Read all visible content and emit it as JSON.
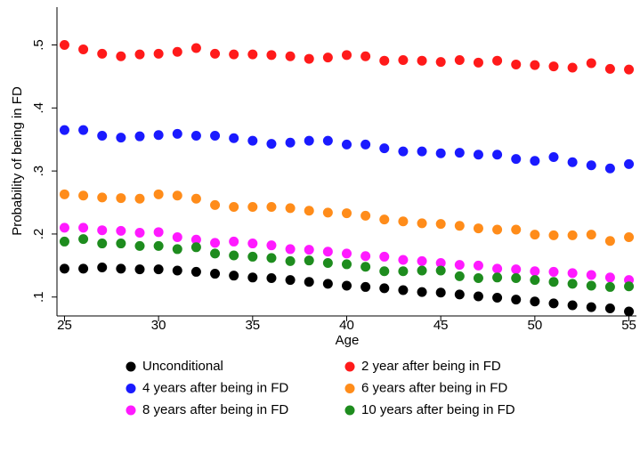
{
  "chart_data": {
    "type": "scatter",
    "x_label": "Age",
    "y_label": "Probability of being in FD",
    "x": [
      25,
      26,
      27,
      28,
      29,
      30,
      31,
      32,
      33,
      34,
      35,
      36,
      37,
      38,
      39,
      40,
      41,
      42,
      43,
      44,
      45,
      46,
      47,
      48,
      49,
      50,
      51,
      52,
      53,
      54,
      55
    ],
    "xlim": [
      24.6,
      55.4
    ],
    "xticks": [
      25,
      30,
      35,
      40,
      45,
      50,
      55
    ],
    "ylim": [
      0.07,
      0.56
    ],
    "yticks": [
      {
        "value": 0.1,
        "label": ".1"
      },
      {
        "value": 0.2,
        "label": ".2"
      },
      {
        "value": 0.3,
        "label": ".3"
      },
      {
        "value": 0.4,
        "label": ".4"
      },
      {
        "value": 0.5,
        "label": ".5"
      }
    ],
    "grid": false,
    "legend": "bottom",
    "series": [
      {
        "name": "Unconditional",
        "color": "#000000",
        "values": [
          0.145,
          0.145,
          0.147,
          0.145,
          0.144,
          0.144,
          0.142,
          0.14,
          0.137,
          0.134,
          0.131,
          0.13,
          0.127,
          0.124,
          0.121,
          0.118,
          0.116,
          0.114,
          0.111,
          0.108,
          0.107,
          0.104,
          0.101,
          0.099,
          0.096,
          0.093,
          0.09,
          0.087,
          0.084,
          0.082,
          0.077
        ]
      },
      {
        "name": "2 year after being in FD",
        "color": "#ff1a1a",
        "values": [
          0.5,
          0.493,
          0.486,
          0.482,
          0.485,
          0.486,
          0.489,
          0.495,
          0.486,
          0.485,
          0.485,
          0.484,
          0.482,
          0.478,
          0.48,
          0.484,
          0.482,
          0.475,
          0.476,
          0.475,
          0.473,
          0.476,
          0.472,
          0.475,
          0.469,
          0.468,
          0.466,
          0.464,
          0.471,
          0.462,
          0.461
        ]
      },
      {
        "name": "4 years after being in FD",
        "color": "#1a1aff",
        "values": [
          0.365,
          0.365,
          0.356,
          0.353,
          0.355,
          0.357,
          0.359,
          0.356,
          0.356,
          0.352,
          0.348,
          0.343,
          0.345,
          0.348,
          0.348,
          0.342,
          0.342,
          0.336,
          0.331,
          0.331,
          0.328,
          0.329,
          0.326,
          0.326,
          0.319,
          0.316,
          0.322,
          0.314,
          0.309,
          0.304,
          0.311
        ]
      },
      {
        "name": "6 years after being in FD",
        "color": "#ff8c1a",
        "values": [
          0.263,
          0.261,
          0.258,
          0.257,
          0.256,
          0.263,
          0.261,
          0.256,
          0.246,
          0.243,
          0.243,
          0.243,
          0.241,
          0.237,
          0.234,
          0.233,
          0.229,
          0.223,
          0.22,
          0.217,
          0.216,
          0.213,
          0.209,
          0.207,
          0.207,
          0.199,
          0.198,
          0.198,
          0.199,
          0.189,
          0.195
        ]
      },
      {
        "name": "8 years after being in FD",
        "color": "#ff1aff",
        "values": [
          0.21,
          0.21,
          0.206,
          0.205,
          0.202,
          0.203,
          0.195,
          0.191,
          0.186,
          0.188,
          0.185,
          0.182,
          0.176,
          0.175,
          0.172,
          0.169,
          0.165,
          0.164,
          0.159,
          0.157,
          0.154,
          0.151,
          0.15,
          0.145,
          0.144,
          0.141,
          0.14,
          0.138,
          0.135,
          0.131,
          0.127
        ]
      },
      {
        "name": "10 years after being in FD",
        "color": "#1e8c1e",
        "values": [
          0.188,
          0.192,
          0.185,
          0.185,
          0.181,
          0.181,
          0.176,
          0.179,
          0.169,
          0.166,
          0.164,
          0.162,
          0.157,
          0.158,
          0.154,
          0.152,
          0.148,
          0.141,
          0.141,
          0.142,
          0.142,
          0.133,
          0.13,
          0.131,
          0.13,
          0.127,
          0.124,
          0.121,
          0.118,
          0.116,
          0.117
        ]
      }
    ]
  }
}
